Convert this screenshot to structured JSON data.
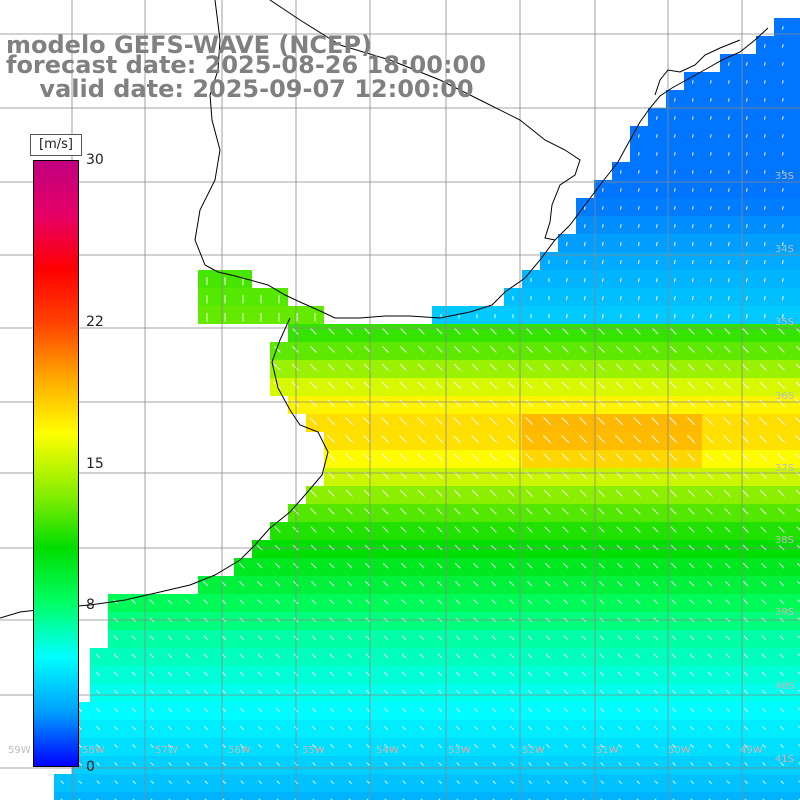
{
  "title": {
    "line1": "modelo GEFS-WAVE (NCEP)",
    "line2": "forecast date: 2025-08-26 18:00:00",
    "line3": "valid date: 2025-09-07 12:00:00"
  },
  "colorbar": {
    "unit": "[m/s]",
    "min": 0,
    "max": 30,
    "ticks": [
      "30",
      "22",
      "15",
      "8",
      "0"
    ],
    "tick_values": [
      30,
      22,
      15,
      8,
      0
    ],
    "colors": [
      "#0000ff",
      "#00a0ff",
      "#00ffff",
      "#00ff66",
      "#00dd00",
      "#88ee00",
      "#ffff00",
      "#ffaa00",
      "#ff4400",
      "#ff0000",
      "#e60066",
      "#c0007f"
    ]
  },
  "grid": {
    "lat_labels": [
      "33S",
      "34S",
      "35S",
      "36S",
      "37S",
      "38S",
      "39S",
      "40S",
      "41S"
    ],
    "lon_labels": [
      "59W",
      "58W",
      "57W",
      "56W",
      "55W",
      "54W",
      "53W",
      "52W",
      "51W",
      "50W",
      "49W"
    ]
  },
  "legend": {
    "land_color": "#ffffff",
    "grid_color": "#888888",
    "coast_color": "#000000",
    "arrow_color": "#ffffff"
  }
}
